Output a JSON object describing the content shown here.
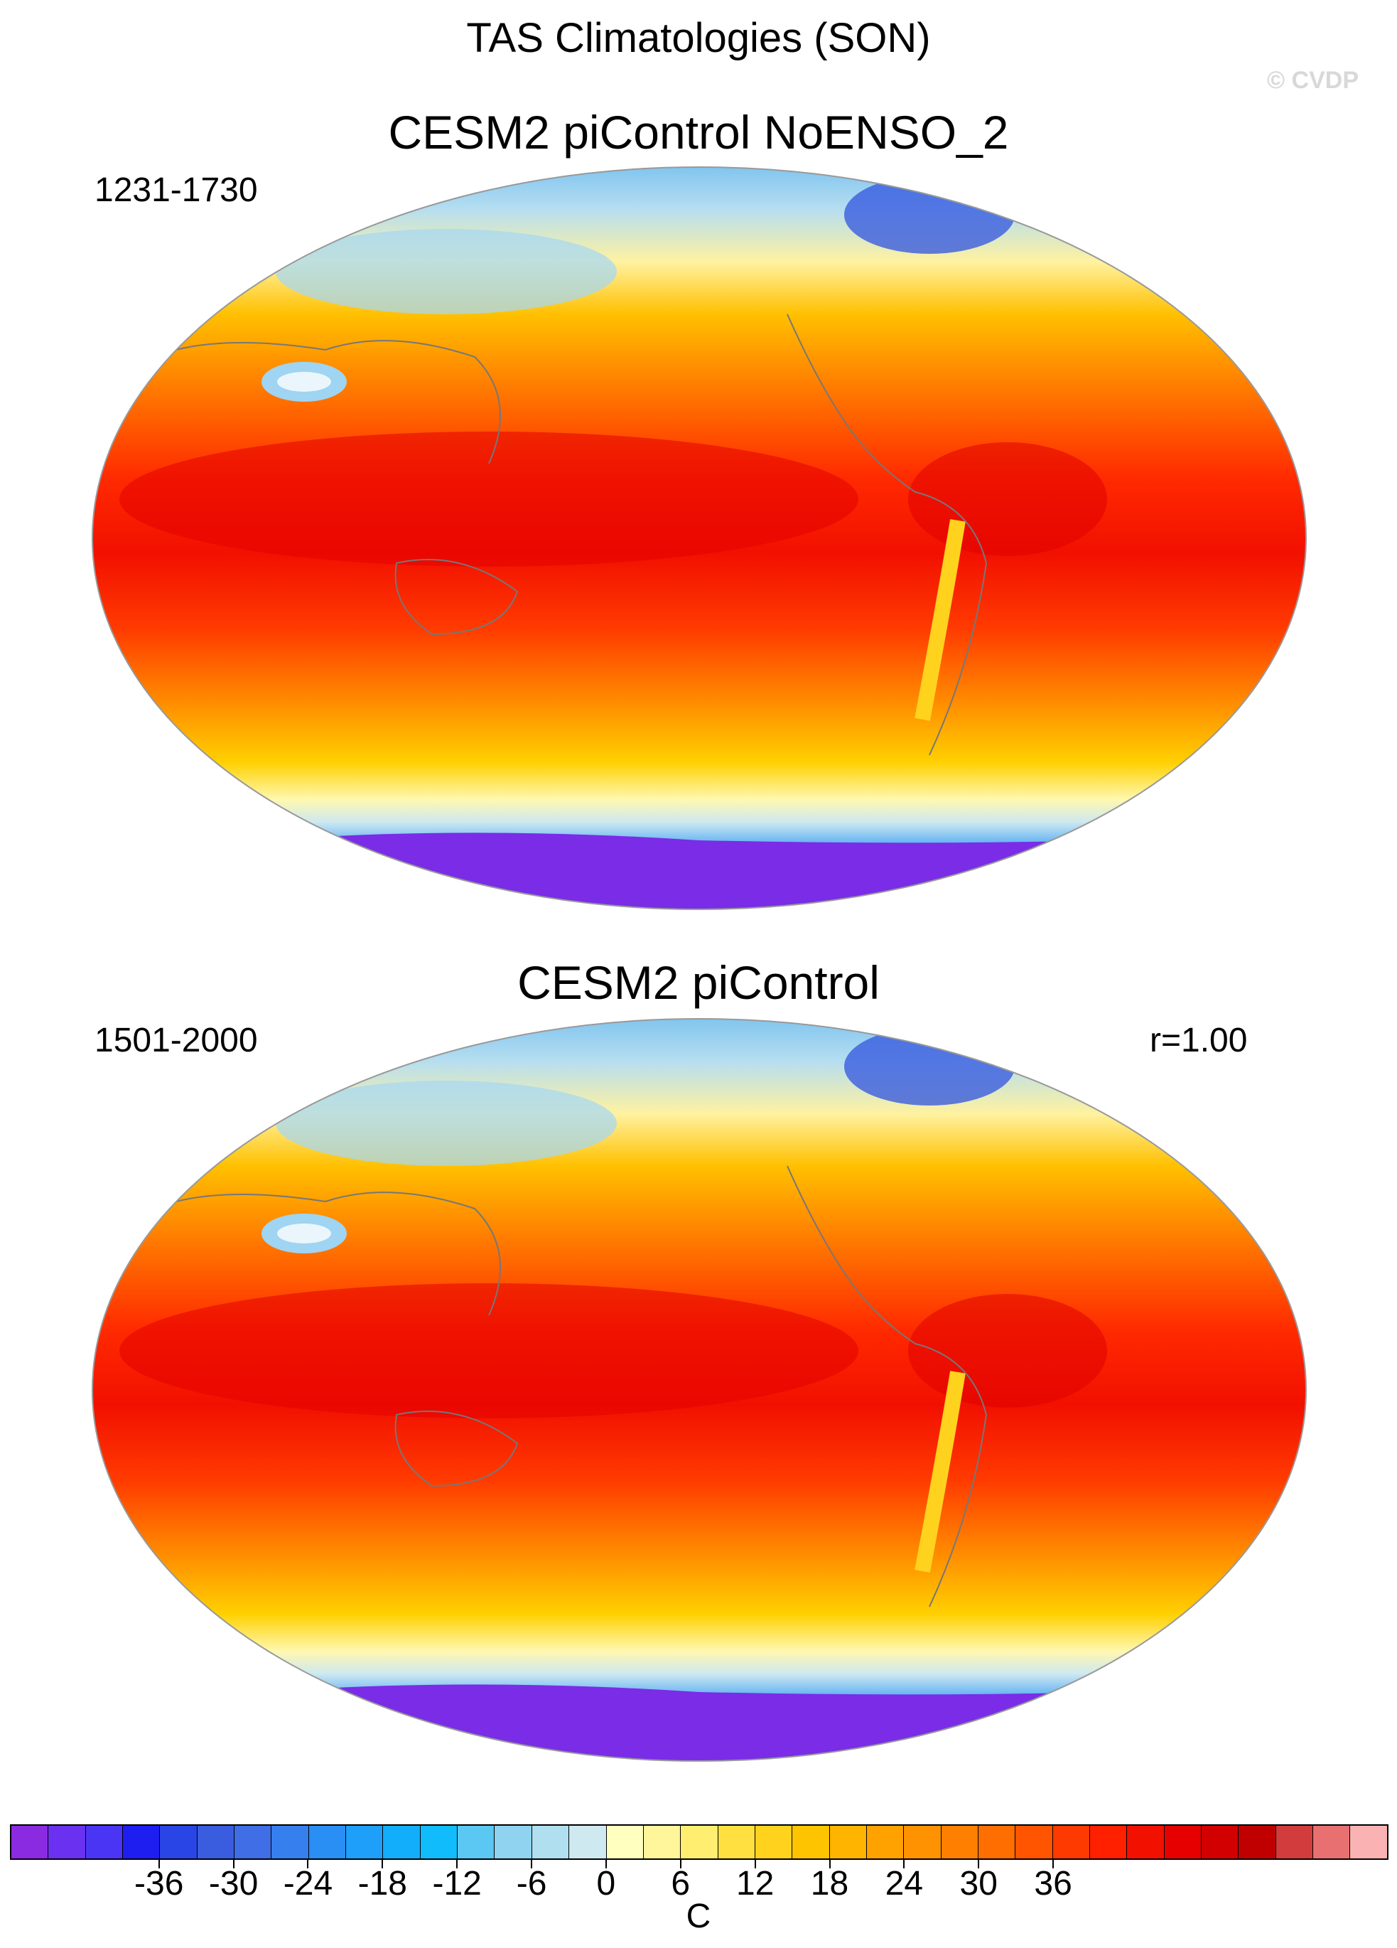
{
  "title": "TAS Climatologies (SON)",
  "credit": "© CVDP",
  "panels": [
    {
      "title": "CESM2 piControl NoENSO_2",
      "period": "1231-1730",
      "stat": ""
    },
    {
      "title": "CESM2 piControl",
      "period": "1501-2000",
      "stat": "r=1.00"
    }
  ],
  "colorbar": {
    "unit": "C",
    "tick_labels": [
      "-36",
      "-30",
      "-24",
      "-18",
      "-12",
      "-6",
      "0",
      "6",
      "12",
      "18",
      "24",
      "30",
      "36"
    ],
    "colors": [
      "#8a2be2",
      "#6a31f0",
      "#4b35f5",
      "#1e1ef0",
      "#2a45e6",
      "#3a5de0",
      "#3f6ee6",
      "#357fee",
      "#2a8ff5",
      "#1ea0fa",
      "#12aefc",
      "#10bcfc",
      "#5ac8f2",
      "#8fd3f0",
      "#b0dff0",
      "#cfe9f0",
      "#ffffc0",
      "#fff59a",
      "#ffee70",
      "#ffe040",
      "#ffd21e",
      "#ffc400",
      "#ffb400",
      "#ffa200",
      "#ff9200",
      "#ff8000",
      "#ff6e00",
      "#ff5400",
      "#ff3a00",
      "#ff2000",
      "#f21000",
      "#e60000",
      "#d20000",
      "#c00000",
      "#d23c3c",
      "#e87070",
      "#fbb2b2"
    ]
  },
  "icons": [
    "map-panel"
  ]
}
